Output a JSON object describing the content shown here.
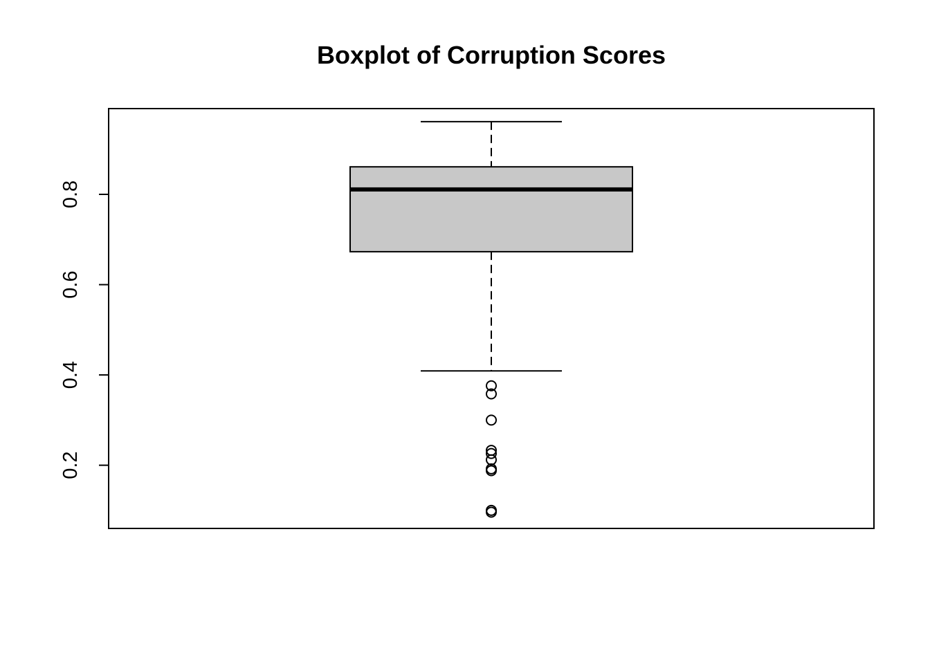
{
  "chart_data": {
    "type": "boxplot",
    "title": "Boxplot of Corruption Scores",
    "xlabel": "",
    "ylabel": "",
    "ylim": [
      0.06,
      0.99
    ],
    "yticks": [
      0.2,
      0.4,
      0.6,
      0.8
    ],
    "ytick_labels": [
      "0.2",
      "0.4",
      "0.6",
      "0.8"
    ],
    "grid": false,
    "legend": "none",
    "box": {
      "whisker_low": 0.409,
      "q1": 0.673,
      "median": 0.811,
      "q3": 0.861,
      "whisker_high": 0.961,
      "outliers": [
        0.376,
        0.358,
        0.3,
        0.233,
        0.226,
        0.212,
        0.192,
        0.188,
        0.1,
        0.096
      ]
    },
    "colors": {
      "box_fill": "#c8c8c8",
      "stroke": "#000000",
      "background": "#ffffff"
    }
  }
}
